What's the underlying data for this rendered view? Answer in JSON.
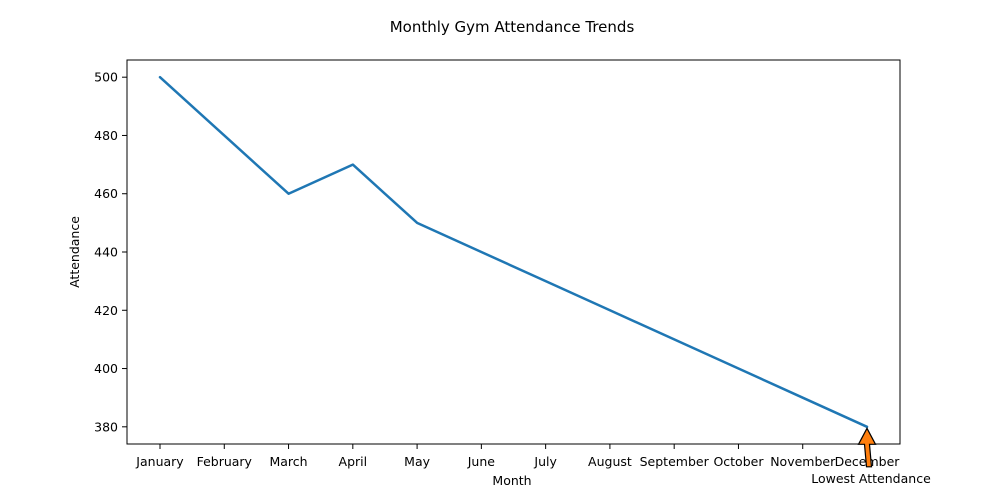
{
  "chart_data": {
    "type": "line",
    "title": "Monthly Gym Attendance Trends",
    "xlabel": "Month",
    "ylabel": "Attendance",
    "categories": [
      "January",
      "February",
      "March",
      "April",
      "May",
      "June",
      "July",
      "August",
      "September",
      "October",
      "November",
      "December"
    ],
    "series": [
      {
        "values": [
          500,
          480,
          460,
          470,
          450,
          440,
          430,
          420,
          410,
          400,
          390,
          380
        ],
        "color": "#1f77b4"
      }
    ],
    "ylim": [
      505.9,
      374.1
    ],
    "y_inverted": true,
    "yticks": [
      380,
      400,
      420,
      440,
      460,
      480,
      500
    ],
    "grid": false,
    "annotation": {
      "text": "Lowest Attendance",
      "target_category": "December",
      "target_value": 380,
      "arrow_color": "#ff7f0e"
    }
  }
}
